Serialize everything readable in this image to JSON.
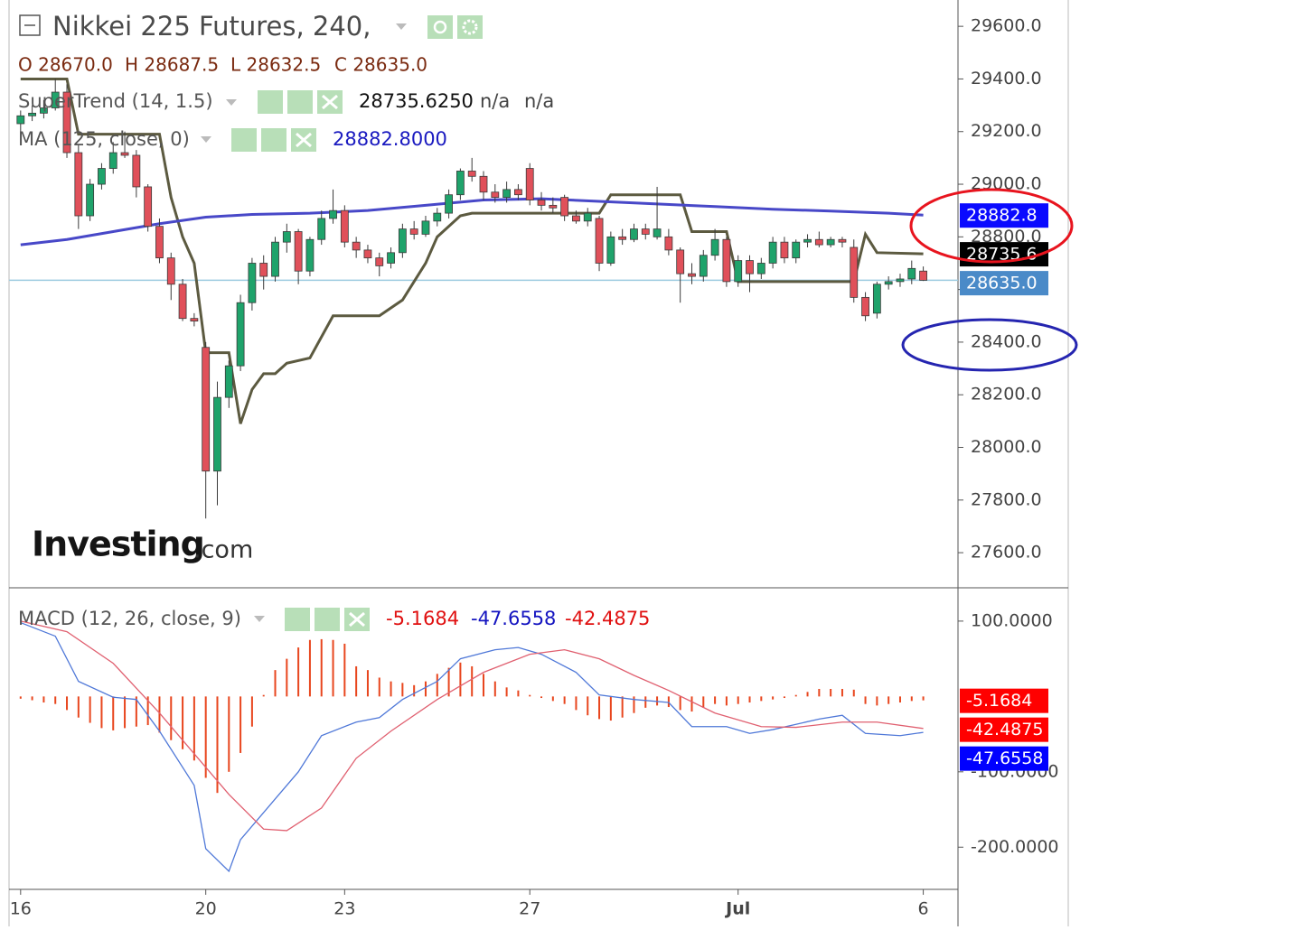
{
  "chart_data": [
    {
      "type": "candlestick",
      "title": "Nikkei 225 Futures, 240,",
      "ohlc": [
        "O 28670.0",
        "H 28687.5",
        "L 28632.5",
        "C 28635.0"
      ],
      "open": [
        29230,
        29260,
        29270,
        29290,
        29350,
        29120,
        28880,
        29000,
        29060,
        29120,
        29110,
        28990,
        28840,
        28720,
        28620,
        28490,
        28380,
        27910,
        28190,
        28310,
        28550,
        28700,
        28650,
        28780,
        28820,
        28670,
        28790,
        28870,
        28900,
        28780,
        28750,
        28720,
        28700,
        28740,
        28830,
        28810,
        28860,
        28890,
        28960,
        29050,
        29030,
        28970,
        28950,
        28980,
        29060,
        28940,
        28920,
        28950,
        28880,
        28860,
        28870,
        28700,
        28800,
        28790,
        28830,
        28800,
        28800,
        28750,
        28660,
        28650,
        28730,
        28790,
        28630,
        28710,
        28660,
        28700,
        28780,
        28720,
        28780,
        28790,
        28770,
        28790,
        28760,
        28570,
        28510,
        28620,
        28630,
        28640,
        28670
      ],
      "high": [
        29280,
        29300,
        29320,
        29400,
        29380,
        29150,
        29020,
        29080,
        29160,
        29200,
        29130,
        29000,
        28870,
        28740,
        28640,
        28510,
        28400,
        28250,
        28330,
        28580,
        28720,
        28730,
        28800,
        28850,
        28830,
        28800,
        28900,
        28980,
        28920,
        28800,
        28770,
        28740,
        28760,
        28850,
        28860,
        28880,
        28910,
        28980,
        29060,
        29100,
        29050,
        29000,
        29010,
        29000,
        29080,
        28970,
        28950,
        28960,
        28900,
        28910,
        28880,
        28820,
        28830,
        28850,
        28850,
        28990,
        28830,
        28760,
        28700,
        28750,
        28830,
        28800,
        28730,
        28730,
        28720,
        28800,
        28800,
        28790,
        28810,
        28820,
        28800,
        28800,
        28790,
        28590,
        28630,
        28650,
        28660,
        28710,
        28687.5
      ],
      "low": [
        29200,
        29240,
        29250,
        29280,
        29100,
        28830,
        28860,
        28980,
        29040,
        29100,
        28950,
        28820,
        28700,
        28560,
        28480,
        28460,
        27730,
        27780,
        28150,
        28290,
        28520,
        28600,
        28630,
        28740,
        28620,
        28650,
        28770,
        28850,
        28760,
        28720,
        28700,
        28650,
        28680,
        28720,
        28790,
        28800,
        28840,
        28870,
        28940,
        29010,
        28940,
        28930,
        28930,
        28940,
        28920,
        28900,
        28890,
        28860,
        28850,
        28840,
        28670,
        28690,
        28770,
        28780,
        28790,
        28790,
        28730,
        28550,
        28620,
        28630,
        28710,
        28610,
        28610,
        28590,
        28640,
        28680,
        28700,
        28700,
        28760,
        28760,
        28760,
        28760,
        28550,
        28480,
        28490,
        28600,
        28610,
        28620,
        28632.5
      ],
      "close": [
        29260,
        29270,
        29290,
        29350,
        29120,
        28880,
        29000,
        29060,
        29120,
        29110,
        28990,
        28840,
        28720,
        28620,
        28490,
        28480,
        27910,
        28190,
        28310,
        28550,
        28700,
        28650,
        28780,
        28820,
        28670,
        28790,
        28870,
        28900,
        28780,
        28750,
        28720,
        28690,
        28740,
        28830,
        28810,
        28860,
        28890,
        28960,
        29050,
        29030,
        28970,
        28950,
        28980,
        28960,
        28940,
        28920,
        28910,
        28880,
        28860,
        28890,
        28700,
        28800,
        28790,
        28830,
        28810,
        28830,
        28750,
        28660,
        28650,
        28730,
        28790,
        28630,
        28710,
        28660,
        28700,
        28780,
        28720,
        28780,
        28790,
        28770,
        28790,
        28780,
        28570,
        28500,
        28620,
        28630,
        28640,
        28680,
        28635
      ],
      "up_color": "#1fa36b",
      "down_color": "#e0505a",
      "xlim": [
        -1,
        81
      ],
      "ylim": [
        27470,
        29700
      ],
      "yticks": [
        {
          "value": 27600,
          "label": "27600.0"
        },
        {
          "value": 27800,
          "label": "27800.0"
        },
        {
          "value": 28000,
          "label": "28000.0"
        },
        {
          "value": 28200,
          "label": "28200.0"
        },
        {
          "value": 28400,
          "label": "28400.0"
        },
        {
          "value": 28600,
          "label": "28600.0"
        },
        {
          "value": 28800,
          "label": "28800.0"
        },
        {
          "value": 29000,
          "label": "29000.0"
        },
        {
          "value": 29200,
          "label": "29200.0"
        },
        {
          "value": 29400,
          "label": "29400.0"
        },
        {
          "value": 29600,
          "label": "29600.0"
        }
      ],
      "last_price": {
        "value": 28635.0,
        "label": "28635.0",
        "color": "#4a8ac8",
        "line_color": "#9ccbe0"
      },
      "overlays": [
        {
          "name": "SuperTrend (14, 1.5)",
          "color": "#5c5a40",
          "x": [
            0,
            4,
            5,
            12,
            13,
            14,
            15,
            16,
            18,
            19,
            20,
            21,
            22,
            23,
            25,
            27,
            31,
            33,
            35,
            36,
            38,
            39,
            50,
            51,
            57,
            58,
            61,
            62,
            72,
            73,
            74,
            78
          ],
          "values": [
            29400,
            29400,
            29190,
            29190,
            28950,
            28800,
            28700,
            28360,
            28360,
            28090,
            28220,
            28280,
            28280,
            28320,
            28340,
            28500,
            28500,
            28560,
            28700,
            28800,
            28880,
            28890,
            28890,
            28960,
            28960,
            28820,
            28820,
            28630,
            28630,
            28810,
            28740,
            28735.625
          ],
          "readout": [
            "28735.6250",
            "n/a",
            "n/a"
          ],
          "tag": {
            "value": 28735.6,
            "label": "28735.6",
            "color": "#000000"
          }
        },
        {
          "name": "MA (125, close, 0)",
          "color": "#4848c8",
          "x": [
            0,
            4,
            8,
            12,
            16,
            20,
            25,
            30,
            35,
            40,
            45,
            50,
            55,
            60,
            65,
            70,
            75,
            78
          ],
          "values": [
            28770,
            28790,
            28820,
            28850,
            28875,
            28885,
            28890,
            28900,
            28920,
            28940,
            28945,
            28935,
            28925,
            28915,
            28905,
            28898,
            28890,
            28882.8
          ],
          "readout": [
            "28882.8000"
          ],
          "tag": {
            "value": 28882.8,
            "label": "28882.8",
            "color": "#0a0aff"
          }
        }
      ],
      "watermark": [
        "Investing",
        ".com"
      ]
    },
    {
      "type": "macd",
      "title": "MACD (12, 26, close, 9)",
      "xlim": [
        -1,
        81
      ],
      "ylim": [
        -256,
        143
      ],
      "xticks": [
        {
          "value": 0,
          "label": "16"
        },
        {
          "value": 16,
          "label": "20"
        },
        {
          "value": 28,
          "label": "23"
        },
        {
          "value": 44,
          "label": "27"
        },
        {
          "value": 62,
          "label": "Jul"
        },
        {
          "value": 78,
          "label": "6"
        }
      ],
      "yticks": [
        {
          "value": 100,
          "label": "100.0000"
        },
        {
          "value": -100,
          "label": "-100.0000"
        },
        {
          "value": -200,
          "label": "-200.0000"
        }
      ],
      "series": [
        {
          "color": "#e8461e",
          "values": [
            -3,
            -5,
            -8,
            -10,
            -18,
            -28,
            -35,
            -42,
            -45,
            -42,
            -40,
            -38,
            -48,
            -58,
            -70,
            -85,
            -108,
            -128,
            -100,
            -75,
            -40,
            2,
            35,
            50,
            65,
            75,
            76,
            75,
            70,
            40,
            35,
            25,
            20,
            18,
            15,
            20,
            30,
            38,
            45,
            40,
            30,
            20,
            12,
            8,
            2,
            -2,
            -6,
            -10,
            -18,
            -25,
            -30,
            -32,
            -28,
            -22,
            -15,
            -12,
            -14,
            -18,
            -20,
            -15,
            -10,
            -12,
            -10,
            -8,
            -6,
            -4,
            -2,
            2,
            6,
            10,
            10,
            10,
            9,
            -10,
            -12,
            -10,
            -8,
            -6,
            -5.1684
          ],
          "tag": {
            "value": -5.1684,
            "label": "-5.1684",
            "color": "#ff0000"
          }
        },
        {
          "color": "#4f78d8",
          "x": [
            0,
            3,
            5,
            8,
            10,
            12,
            15,
            16,
            18,
            19,
            22,
            24,
            26,
            29,
            31,
            33,
            36,
            38,
            41,
            43,
            45,
            48,
            50,
            53,
            56,
            58,
            61,
            63,
            65,
            69,
            71,
            73,
            76,
            78
          ],
          "values": [
            98,
            80,
            20,
            -1,
            -4,
            -46,
            -118,
            -202,
            -232,
            -190,
            -136,
            -100,
            -52,
            -34,
            -28,
            -4,
            20,
            50,
            62,
            65,
            56,
            32,
            2,
            -4,
            -8,
            -40,
            -40,
            -49,
            -44,
            -30,
            -25,
            -49,
            -52,
            -47.6558
          ],
          "tag": {
            "value": -47.6558,
            "label": "-47.6558",
            "color": "#0000ff"
          }
        },
        {
          "color": "#e06070",
          "x": [
            0,
            4,
            8,
            12,
            15,
            18,
            21,
            23,
            26,
            29,
            32,
            36,
            40,
            44,
            47,
            50,
            53,
            56,
            60,
            64,
            67,
            71,
            74,
            78
          ],
          "values": [
            100,
            86,
            44,
            -22,
            -76,
            -130,
            -176,
            -178,
            -148,
            -82,
            -46,
            -4,
            32,
            56,
            62,
            50,
            28,
            8,
            -22,
            -40,
            -41,
            -34,
            -34,
            -42.4875
          ],
          "tag": {
            "value": -42.4875,
            "label": "-42.4875",
            "color": "#ff0000"
          }
        }
      ]
    }
  ]
}
